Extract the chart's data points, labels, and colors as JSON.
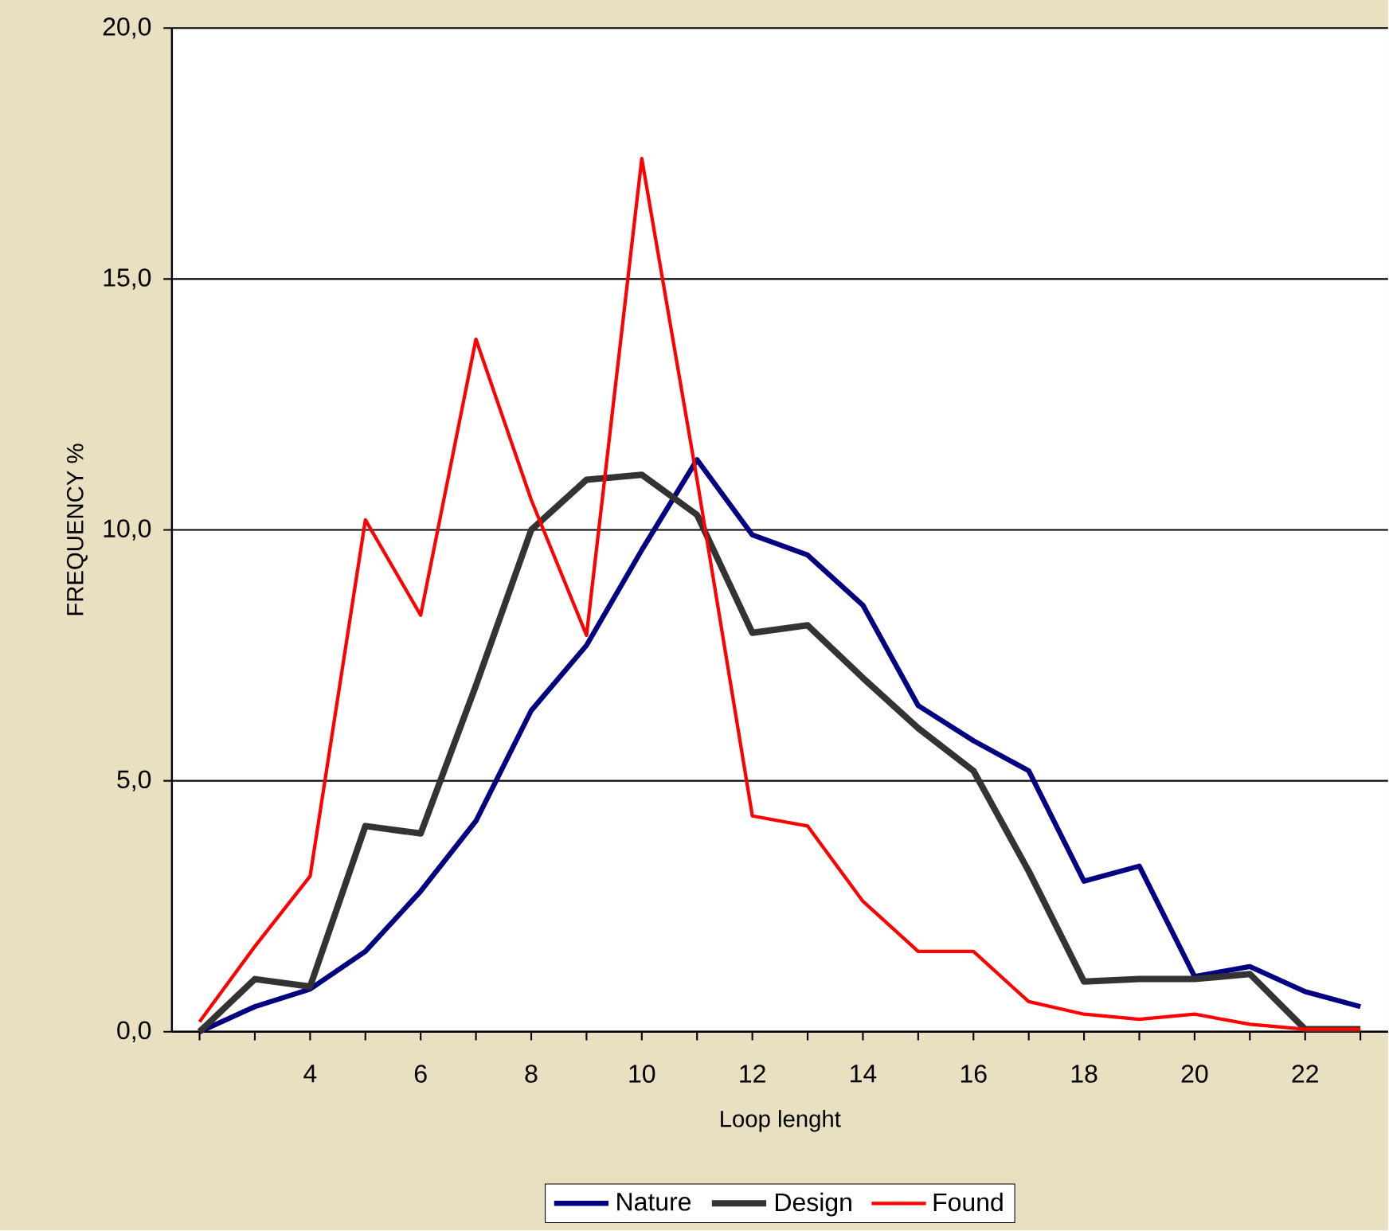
{
  "chart_data": {
    "type": "line",
    "xlabel": "Loop lenght",
    "ylabel": "FREQUENCY %",
    "categories": [
      null,
      null,
      "4",
      null,
      "6",
      null,
      "8",
      null,
      "10",
      null,
      "12",
      null,
      "14",
      null,
      "16",
      null,
      "18",
      null,
      "20",
      null,
      "22",
      null
    ],
    "ylim": [
      0,
      20
    ],
    "yticks": [
      {
        "value": 0,
        "label": "0,0"
      },
      {
        "value": 5,
        "label": "5,0"
      },
      {
        "value": 10,
        "label": "10,0"
      },
      {
        "value": 15,
        "label": "15,0"
      },
      {
        "value": 20,
        "label": "20,0"
      }
    ],
    "grid": "y",
    "legend": "bottom",
    "series": [
      {
        "name": "Nature",
        "color": "#000080",
        "values": [
          0,
          0.5,
          0.85,
          1.6,
          2.8,
          4.2,
          6.4,
          7.7,
          9.6,
          11.4,
          9.9,
          9.5,
          8.5,
          6.5,
          5.8,
          5.2,
          3.0,
          3.3,
          1.1,
          1.3,
          0.8,
          0.5
        ]
      },
      {
        "name": "Design",
        "color": "#333333",
        "values": [
          0,
          1.05,
          0.9,
          4.1,
          3.95,
          6.9,
          10.0,
          11.0,
          11.1,
          10.3,
          7.95,
          8.1,
          7.05,
          6.05,
          5.2,
          3.2,
          1.0,
          1.05,
          1.05,
          1.15,
          0.05,
          0.05
        ]
      },
      {
        "name": "Found",
        "color": "#ff0000",
        "values": [
          0.2,
          1.7,
          3.1,
          10.2,
          8.3,
          13.8,
          10.6,
          7.9,
          17.4,
          11.0,
          4.3,
          4.1,
          2.6,
          1.6,
          1.6,
          0.6,
          0.35,
          0.25,
          0.35,
          0.15,
          0.05,
          0.05
        ]
      }
    ]
  }
}
